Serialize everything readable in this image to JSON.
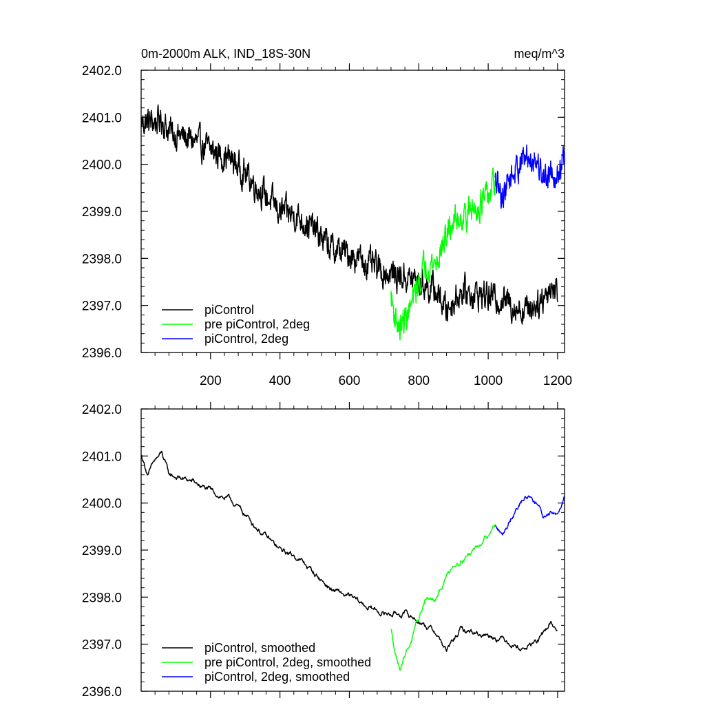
{
  "chart_data": [
    {
      "type": "line",
      "title_left": "0m-2000m ALK, IND_18S-30N",
      "title_right": "meq/m^3",
      "xlim": [
        0,
        1220
      ],
      "ylim": [
        2396.0,
        2402.0
      ],
      "xticks": [
        200,
        400,
        600,
        800,
        1000,
        1200
      ],
      "xtick_labels": [
        "200",
        "400",
        "600",
        "800",
        "1000",
        "1200"
      ],
      "yticks": [
        2396.0,
        2397.0,
        2398.0,
        2399.0,
        2400.0,
        2401.0,
        2402.0
      ],
      "ytick_labels": [
        "2396.0",
        "2397.0",
        "2398.0",
        "2399.0",
        "2400.0",
        "2401.0",
        "2402.0"
      ],
      "legend_position": "bottom-left",
      "series": [
        {
          "name": "piControl",
          "color": "#000000",
          "noise": 0.25,
          "points": [
            [
              1,
              2400.9
            ],
            [
              40,
              2400.9
            ],
            [
              60,
              2400.95
            ],
            [
              80,
              2400.7
            ],
            [
              150,
              2400.5
            ],
            [
              200,
              2400.3
            ],
            [
              260,
              2400.1
            ],
            [
              300,
              2399.8
            ],
            [
              350,
              2399.4
            ],
            [
              400,
              2399.0
            ],
            [
              450,
              2398.9
            ],
            [
              500,
              2398.6
            ],
            [
              550,
              2398.2
            ],
            [
              600,
              2398.1
            ],
            [
              650,
              2397.9
            ],
            [
              700,
              2397.7
            ],
            [
              760,
              2397.6
            ],
            [
              800,
              2397.5
            ],
            [
              850,
              2397.3
            ],
            [
              880,
              2396.9
            ],
            [
              920,
              2397.3
            ],
            [
              1000,
              2397.2
            ],
            [
              1050,
              2397.1
            ],
            [
              1100,
              2396.9
            ],
            [
              1150,
              2397.1
            ],
            [
              1180,
              2397.4
            ],
            [
              1200,
              2397.3
            ]
          ]
        },
        {
          "name": "pre piControl, 2deg",
          "color": "#00ff00",
          "noise": 0.25,
          "points": [
            [
              720,
              2397.2
            ],
            [
              730,
              2396.8
            ],
            [
              745,
              2396.5
            ],
            [
              760,
              2396.7
            ],
            [
              780,
              2397.0
            ],
            [
              800,
              2397.5
            ],
            [
              820,
              2397.9
            ],
            [
              850,
              2397.9
            ],
            [
              870,
              2398.3
            ],
            [
              900,
              2398.8
            ],
            [
              950,
              2399.0
            ],
            [
              1000,
              2399.3
            ],
            [
              1020,
              2399.6
            ]
          ]
        },
        {
          "name": "piControl, 2deg",
          "color": "#0000ff",
          "noise": 0.25,
          "points": [
            [
              1020,
              2399.6
            ],
            [
              1040,
              2399.3
            ],
            [
              1060,
              2399.7
            ],
            [
              1080,
              2399.9
            ],
            [
              1100,
              2400.1
            ],
            [
              1120,
              2400.15
            ],
            [
              1140,
              2400.1
            ],
            [
              1160,
              2399.7
            ],
            [
              1180,
              2399.9
            ],
            [
              1200,
              2399.8
            ],
            [
              1220,
              2400.1
            ]
          ]
        }
      ]
    },
    {
      "type": "line",
      "xlim": [
        0,
        1220
      ],
      "ylim": [
        2396.0,
        2402.0
      ],
      "yticks": [
        2396.0,
        2397.0,
        2398.0,
        2399.0,
        2400.0,
        2401.0,
        2402.0
      ],
      "ytick_labels": [
        "2396.0",
        "2397.0",
        "2398.0",
        "2399.0",
        "2400.0",
        "2401.0",
        "2402.0"
      ],
      "legend_position": "bottom-left",
      "series": [
        {
          "name": "piControl, smoothed",
          "color": "#000000",
          "noise": 0.08,
          "points": [
            [
              1,
              2401.0
            ],
            [
              20,
              2400.6
            ],
            [
              40,
              2400.9
            ],
            [
              60,
              2401.05
            ],
            [
              80,
              2400.6
            ],
            [
              150,
              2400.45
            ],
            [
              200,
              2400.25
            ],
            [
              260,
              2400.05
            ],
            [
              300,
              2399.75
            ],
            [
              350,
              2399.35
            ],
            [
              400,
              2399.0
            ],
            [
              450,
              2398.85
            ],
            [
              500,
              2398.5
            ],
            [
              550,
              2398.15
            ],
            [
              600,
              2398.0
            ],
            [
              650,
              2397.8
            ],
            [
              700,
              2397.65
            ],
            [
              760,
              2397.65
            ],
            [
              800,
              2397.5
            ],
            [
              850,
              2397.25
            ],
            [
              880,
              2396.85
            ],
            [
              920,
              2397.3
            ],
            [
              1000,
              2397.2
            ],
            [
              1050,
              2397.1
            ],
            [
              1100,
              2396.9
            ],
            [
              1150,
              2397.1
            ],
            [
              1180,
              2397.45
            ],
            [
              1200,
              2397.3
            ]
          ]
        },
        {
          "name": "pre piControl, 2deg, smoothed",
          "color": "#00ff00",
          "noise": 0.08,
          "points": [
            [
              720,
              2397.3
            ],
            [
              735,
              2396.75
            ],
            [
              745,
              2396.5
            ],
            [
              760,
              2396.8
            ],
            [
              780,
              2397.1
            ],
            [
              800,
              2397.5
            ],
            [
              820,
              2398.0
            ],
            [
              850,
              2397.9
            ],
            [
              870,
              2398.3
            ],
            [
              900,
              2398.7
            ],
            [
              950,
              2398.95
            ],
            [
              1000,
              2399.35
            ],
            [
              1020,
              2399.55
            ]
          ]
        },
        {
          "name": "piControl, 2deg, smoothed",
          "color": "#0000ff",
          "noise": 0.08,
          "points": [
            [
              1020,
              2399.5
            ],
            [
              1040,
              2399.3
            ],
            [
              1060,
              2399.6
            ],
            [
              1080,
              2399.9
            ],
            [
              1100,
              2400.1
            ],
            [
              1120,
              2400.15
            ],
            [
              1140,
              2400.0
            ],
            [
              1160,
              2399.7
            ],
            [
              1180,
              2399.85
            ],
            [
              1200,
              2399.8
            ],
            [
              1220,
              2400.2
            ]
          ]
        }
      ]
    }
  ]
}
